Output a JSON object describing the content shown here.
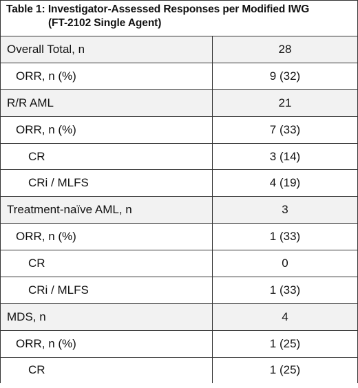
{
  "table": {
    "caption_line1": "Table 1: Investigator-Assessed Responses per Modified IWG",
    "caption_line2": "(FT-2102 Single Agent)",
    "rows": [
      {
        "label": "Overall Total, n",
        "value": "28"
      },
      {
        "label": "ORR, n (%)",
        "value": "9 (32)"
      },
      {
        "label": "R/R AML",
        "value": "21"
      },
      {
        "label": "ORR, n (%)",
        "value": "7 (33)"
      },
      {
        "label": "CR",
        "value": "3 (14)"
      },
      {
        "label": "CRi / MLFS",
        "value": "4 (19)"
      },
      {
        "label": "Treatment-naïve AML, n",
        "value": "3"
      },
      {
        "label": "ORR, n (%)",
        "value": "1 (33)"
      },
      {
        "label": "CR",
        "value": "0"
      },
      {
        "label": "CRi / MLFS",
        "value": "1 (33)"
      },
      {
        "label": "MDS, n",
        "value": "4"
      },
      {
        "label": "ORR, n (%)",
        "value": "1 (25)"
      },
      {
        "label": "CR",
        "value": "1 (25)"
      }
    ]
  },
  "colors": {
    "shaded_row": "#f2f2f2",
    "border": "#333333"
  }
}
